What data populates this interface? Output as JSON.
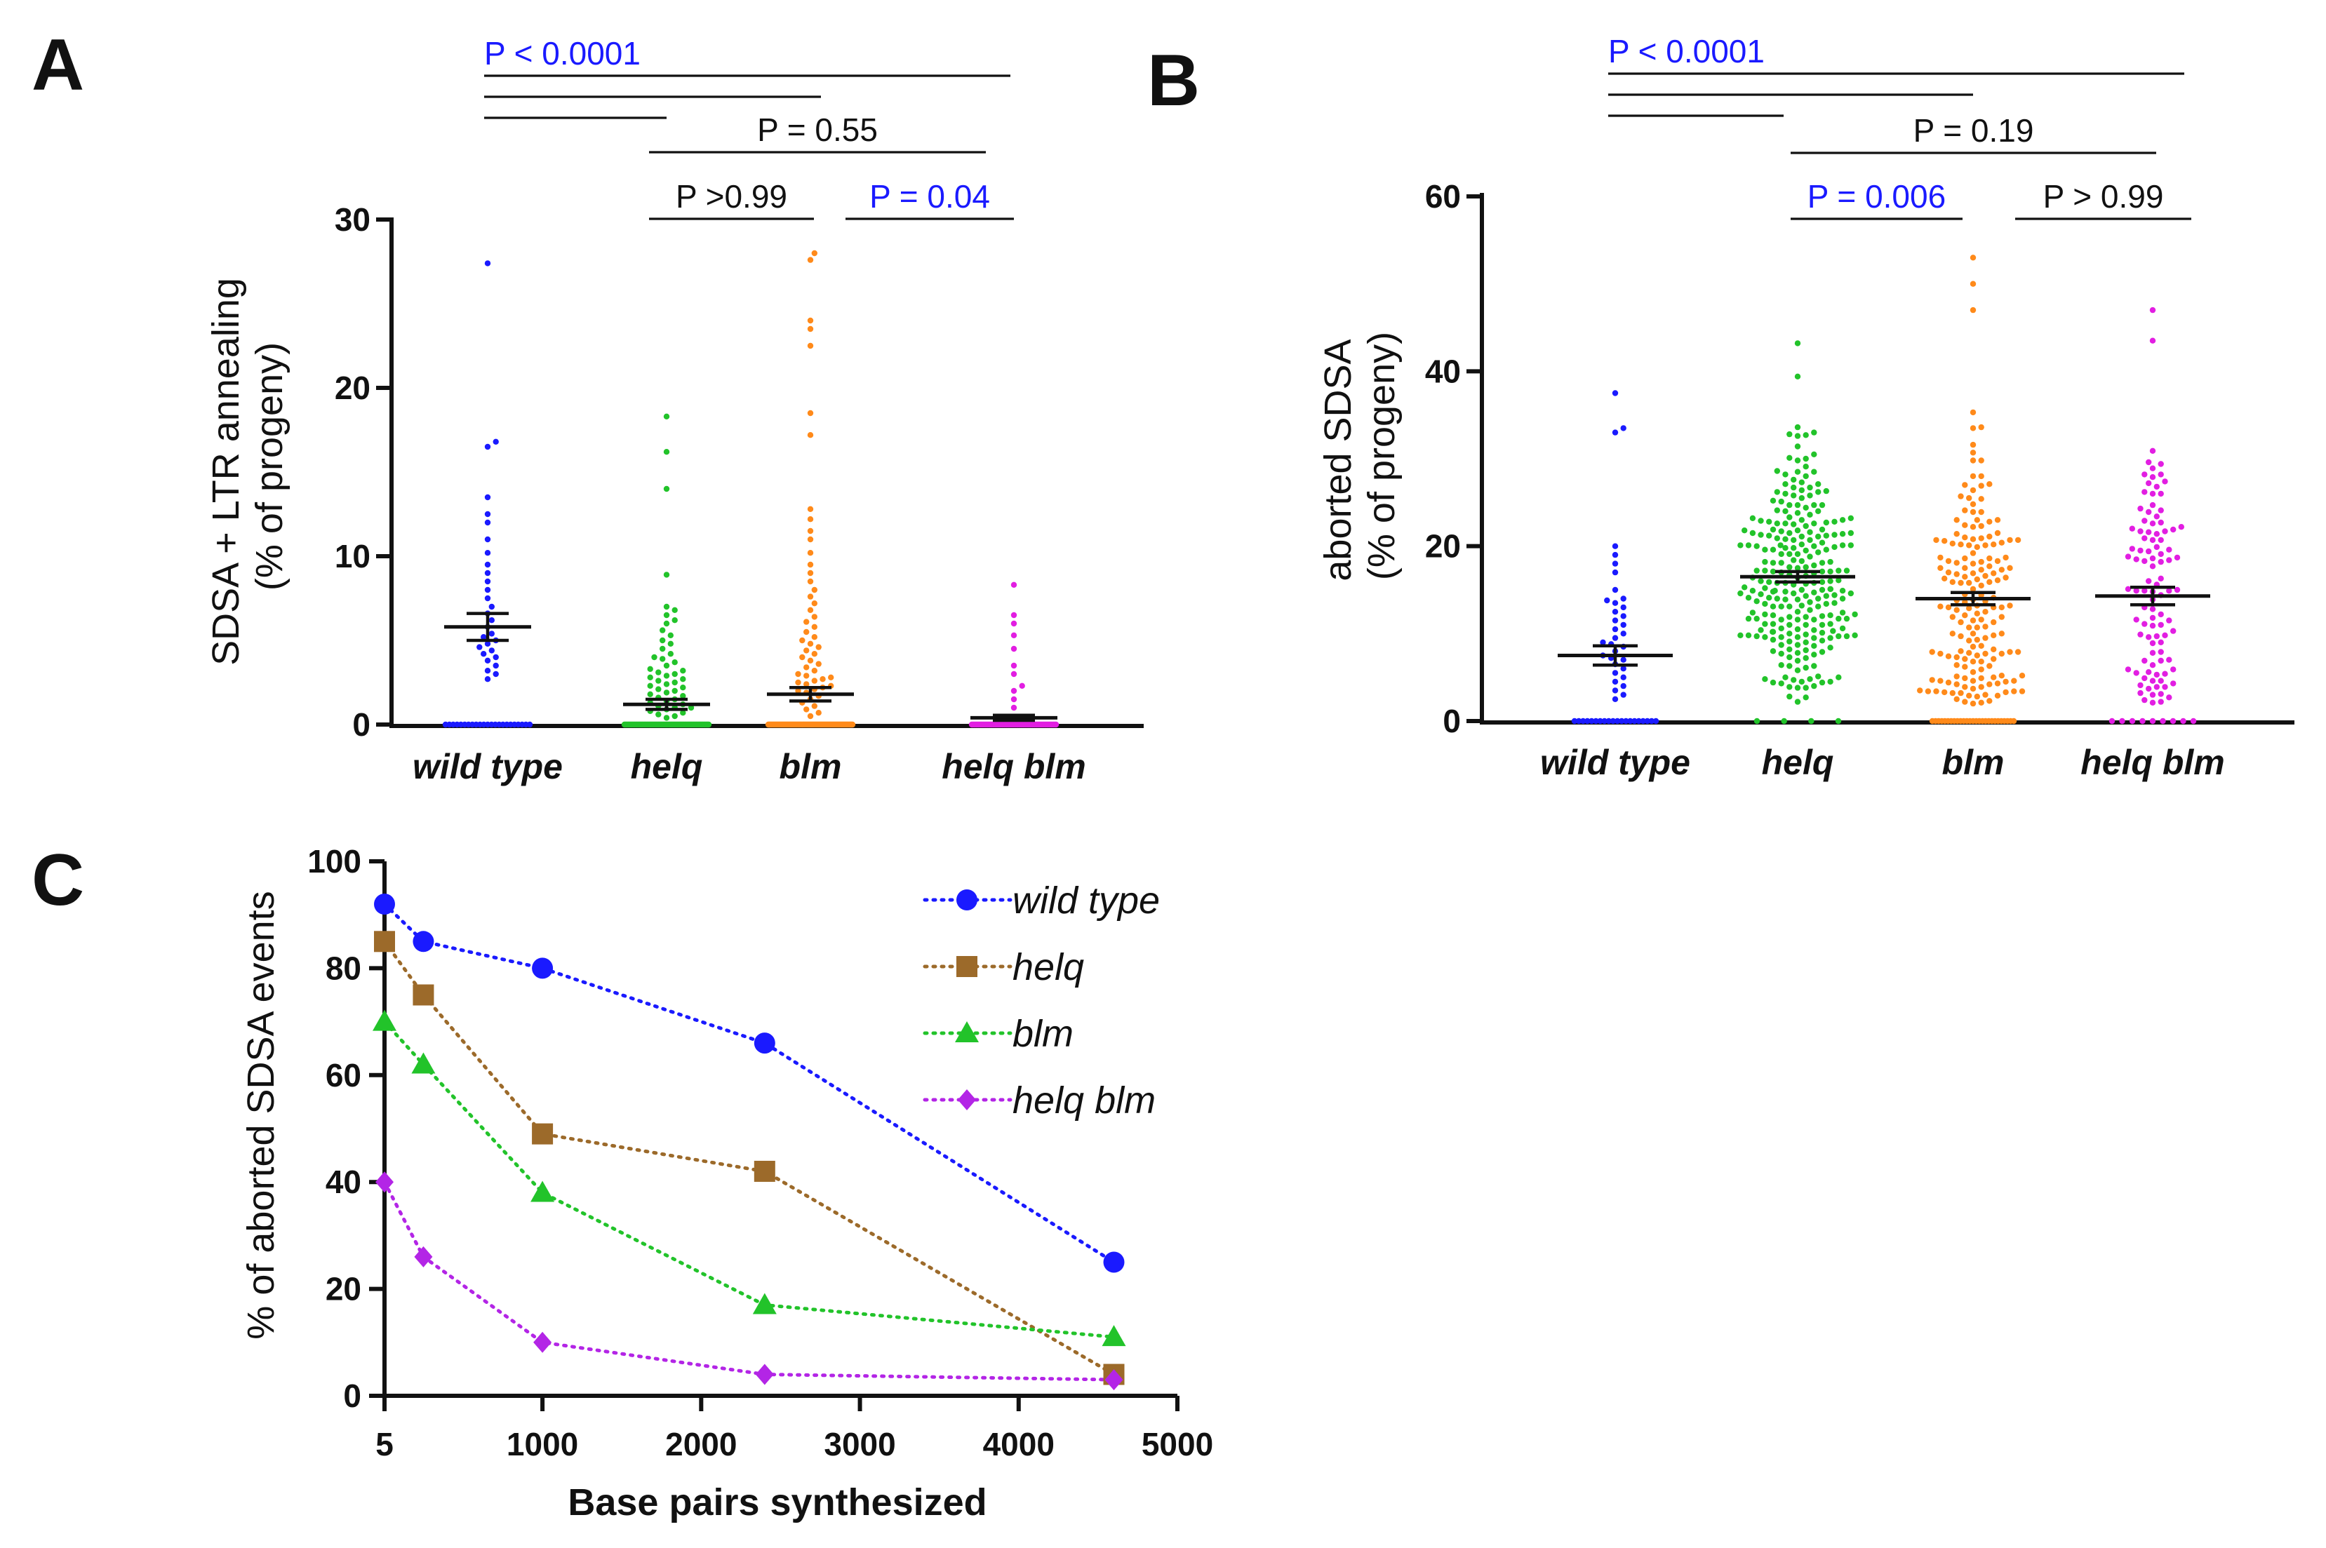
{
  "panels": {
    "a": {
      "letter": "A"
    },
    "b": {
      "letter": "B"
    },
    "c": {
      "letter": "C"
    }
  },
  "chart_data": [
    {
      "id": "a",
      "type": "scatter",
      "title": "",
      "xlabel": "",
      "ylabel_line1": "SDSA + LTR annealing",
      "ylabel_line2": "(% of progeny)",
      "ylim": [
        0,
        30
      ],
      "yticks": [
        0,
        10,
        20,
        30
      ],
      "categories": [
        "wild type",
        "helq",
        "blm",
        "helq blm"
      ],
      "series": [
        {
          "name": "wild type",
          "color": "#1a1aff",
          "n": 54,
          "mean": 5.8,
          "sem": 0.8,
          "values": [
            0,
            0,
            0,
            0,
            0,
            0,
            0,
            0,
            0,
            0,
            0,
            0,
            0,
            0,
            0,
            0,
            0,
            0,
            0,
            0,
            0,
            0,
            0,
            2.7,
            3.0,
            3.2,
            3.5,
            3.8,
            4.0,
            4.2,
            4.4,
            4.6,
            4.8,
            5.0,
            5.2,
            5.4,
            5.8,
            6.2,
            6.6,
            7.0,
            7.5,
            8.0,
            8.5,
            9.0,
            9.5,
            10.2,
            11.0,
            12.0,
            12.5,
            13.5,
            16.5,
            16.8,
            27.4
          ]
        },
        {
          "name": "helq",
          "color": "#22c32a",
          "n": 150,
          "mean": 1.2,
          "sem": 0.3,
          "values": [
            0,
            0,
            0,
            0,
            0,
            0,
            0,
            0,
            0,
            0,
            0,
            0,
            0,
            0,
            0,
            0,
            0,
            0,
            0,
            0,
            0,
            0,
            0,
            0,
            0,
            0,
            0,
            0,
            0,
            0,
            0,
            0,
            0,
            0,
            0,
            0,
            0,
            0,
            0,
            0,
            0,
            0,
            0,
            0,
            0,
            0,
            0,
            0,
            0,
            0,
            0,
            0,
            0,
            0,
            0,
            0,
            0,
            0,
            0,
            0,
            0,
            0,
            0,
            0,
            0,
            0,
            0,
            0,
            0,
            0,
            0,
            0,
            0,
            0,
            0,
            0,
            0,
            0,
            0,
            0,
            0,
            0,
            0,
            0,
            0,
            0,
            0,
            0,
            0,
            0,
            0.4,
            0.5,
            0.6,
            0.7,
            0.8,
            0.9,
            1.0,
            1.0,
            1.1,
            1.2,
            1.3,
            1.4,
            1.5,
            1.6,
            1.7,
            1.8,
            1.9,
            2.0,
            2.1,
            2.2,
            2.3,
            2.4,
            2.5,
            2.6,
            2.7,
            2.8,
            2.9,
            3.0,
            3.1,
            3.2,
            3.3,
            3.5,
            3.7,
            3.9,
            4.0,
            4.2,
            4.5,
            4.8,
            5.0,
            5.3,
            5.6,
            6.0,
            6.2,
            6.5,
            6.8,
            7.0,
            8.9,
            14.0,
            16.2,
            18.3
          ]
        },
        {
          "name": "blm",
          "color": "#ff8a1a",
          "n": 180,
          "mean": 1.8,
          "sem": 0.4,
          "values": [
            0,
            0,
            0,
            0,
            0,
            0,
            0,
            0,
            0,
            0,
            0,
            0,
            0,
            0,
            0,
            0,
            0,
            0,
            0,
            0,
            0,
            0,
            0,
            0,
            0,
            0,
            0,
            0,
            0,
            0,
            0,
            0,
            0,
            0,
            0,
            0,
            0,
            0,
            0,
            0,
            0,
            0,
            0,
            0,
            0,
            0,
            0,
            0,
            0,
            0,
            0,
            0,
            0,
            0,
            0,
            0,
            0,
            0,
            0,
            0,
            0,
            0,
            0,
            0,
            0,
            0,
            0,
            0,
            0,
            0,
            0,
            0,
            0,
            0,
            0,
            0,
            0,
            0,
            0,
            0,
            0,
            0,
            0,
            0,
            0,
            0,
            0,
            0,
            0,
            0,
            0,
            0,
            0,
            0,
            0,
            0,
            0,
            0,
            0,
            0,
            0,
            0,
            0,
            0,
            0,
            0,
            0,
            0,
            0,
            0,
            0,
            0,
            0,
            0,
            0,
            0,
            0,
            0,
            0,
            0,
            0.5,
            0.7,
            0.9,
            1.1,
            1.3,
            1.5,
            1.7,
            1.9,
            2.0,
            2.1,
            2.2,
            2.3,
            2.4,
            2.5,
            2.6,
            2.7,
            2.8,
            2.9,
            3.0,
            3.2,
            3.4,
            3.6,
            3.8,
            4.0,
            4.2,
            4.4,
            4.6,
            4.8,
            5.0,
            5.2,
            5.5,
            5.8,
            6.1,
            6.4,
            6.8,
            7.2,
            7.6,
            8.0,
            8.5,
            9.0,
            9.5,
            10.2,
            11.0,
            11.5,
            12.2,
            12.8,
            17.2,
            18.5,
            22.5,
            23.5,
            24.0,
            27.6,
            28.0
          ]
        },
        {
          "name": "helq blm",
          "color": "#e21ee2",
          "n": 90,
          "mean": 0.4,
          "sem": 0.15,
          "values": [
            0,
            0,
            0,
            0,
            0,
            0,
            0,
            0,
            0,
            0,
            0,
            0,
            0,
            0,
            0,
            0,
            0,
            0,
            0,
            0,
            0,
            0,
            0,
            0,
            0,
            0,
            0,
            0,
            0,
            0,
            0,
            0,
            0,
            0,
            0,
            0,
            0,
            0,
            0,
            0,
            0,
            0,
            0,
            0,
            0,
            0,
            0,
            0,
            0,
            0,
            0,
            0,
            0,
            0,
            0,
            0,
            0,
            0,
            0,
            0,
            0,
            0,
            0,
            0,
            0,
            0,
            0,
            0,
            0,
            0,
            0,
            0,
            0,
            0,
            0,
            0,
            1.0,
            1.5,
            2.0,
            2.3,
            3.0,
            3.5,
            4.5,
            5.3,
            6.0,
            6.5,
            8.3
          ]
        }
      ],
      "comparisons": [
        {
          "from": 0,
          "to": 3,
          "label": "P < 0.0001",
          "significant": true
        },
        {
          "from": 0,
          "to": 2,
          "label": "",
          "significant": false
        },
        {
          "from": 0,
          "to": 1,
          "label": "",
          "significant": false
        },
        {
          "from": 1,
          "to": 3,
          "label": "P = 0.55",
          "significant": false
        },
        {
          "from": 1,
          "to": 2,
          "label": "P >0.99",
          "significant": false
        },
        {
          "from": 2,
          "to": 3,
          "label": "P = 0.04",
          "significant": true
        }
      ]
    },
    {
      "id": "b",
      "type": "scatter",
      "title": "",
      "xlabel": "",
      "ylabel_line1": "aborted SDSA",
      "ylabel_line2": "(% of progeny)",
      "ylim": [
        0,
        60
      ],
      "yticks": [
        0,
        20,
        40,
        60
      ],
      "categories": [
        "wild type",
        "helq",
        "blm",
        "helq blm"
      ],
      "series": [
        {
          "name": "wild type",
          "color": "#1a1aff",
          "n": 55,
          "mean": 7.5,
          "sem": 1.1,
          "values": [
            0,
            0,
            0,
            0,
            0,
            0,
            0,
            0,
            0,
            0,
            0,
            0,
            0,
            0,
            0,
            0,
            0,
            0,
            0,
            0,
            2.5,
            3.0,
            3.5,
            4.0,
            4.5,
            5.0,
            5.5,
            6.0,
            6.5,
            7.0,
            7.5,
            8.0,
            8.5,
            9.0,
            9.5,
            10.0,
            10.5,
            11.0,
            11.5,
            12.0,
            12.5,
            13.0,
            13.5,
            13.8,
            14.0,
            15.0,
            17.0,
            18.0,
            19.0,
            20.0,
            7.2,
            8.8,
            33.0,
            33.5,
            37.5
          ]
        },
        {
          "name": "helq",
          "color": "#22c32a",
          "n": 260,
          "mean": 16.5,
          "sem": 0.6,
          "values": [
            0,
            0,
            0,
            0
          ]
        },
        {
          "name": "blm",
          "color": "#ff8a1a",
          "n": 200,
          "mean": 14.0,
          "sem": 0.7,
          "values": [
            0,
            0,
            0,
            0,
            0,
            0,
            0,
            0,
            0,
            0,
            0,
            0,
            0,
            0,
            0,
            0,
            0,
            0,
            0,
            0,
            0,
            0,
            0,
            0,
            0,
            0,
            0,
            47.0,
            50.0,
            53.0
          ]
        },
        {
          "name": "helq blm",
          "color": "#e21ee2",
          "n": 110,
          "mean": 14.3,
          "sem": 1.0,
          "values": [
            0,
            0,
            0,
            0,
            0,
            0,
            0,
            0,
            0,
            43.5,
            47.0
          ]
        }
      ],
      "comparisons": [
        {
          "from": 0,
          "to": 3,
          "label": "P < 0.0001",
          "significant": true
        },
        {
          "from": 0,
          "to": 2,
          "label": "",
          "significant": false
        },
        {
          "from": 0,
          "to": 1,
          "label": "",
          "significant": false
        },
        {
          "from": 1,
          "to": 3,
          "label": "P = 0.19",
          "significant": false
        },
        {
          "from": 1,
          "to": 2,
          "label": "P = 0.006",
          "significant": true
        },
        {
          "from": 2,
          "to": 3,
          "label": "P > 0.99",
          "significant": false
        }
      ]
    },
    {
      "id": "c",
      "type": "line",
      "title": "",
      "xlabel": "Base pairs synthesized",
      "ylabel": "% of aborted SDSA events",
      "xlim": [
        5,
        5000
      ],
      "ylim": [
        0,
        100
      ],
      "xticks": [
        5,
        1000,
        2000,
        3000,
        4000,
        5000
      ],
      "yticks": [
        0,
        20,
        40,
        60,
        80,
        100
      ],
      "x": [
        5,
        250,
        1000,
        2400,
        4600
      ],
      "series": [
        {
          "name": "wild type",
          "color": "#1a1aff",
          "marker": "circle",
          "values": [
            92,
            85,
            80,
            66,
            25
          ]
        },
        {
          "name": "helq",
          "color": "#9c6a2a",
          "marker": "square",
          "values": [
            85,
            75,
            49,
            42,
            4
          ]
        },
        {
          "name": "blm",
          "color": "#22c32a",
          "marker": "triangle",
          "values": [
            70,
            62,
            38,
            17,
            11
          ]
        },
        {
          "name": "helq blm",
          "color": "#b325e6",
          "marker": "diamond",
          "values": [
            40,
            26,
            10,
            4,
            3
          ]
        }
      ]
    }
  ]
}
